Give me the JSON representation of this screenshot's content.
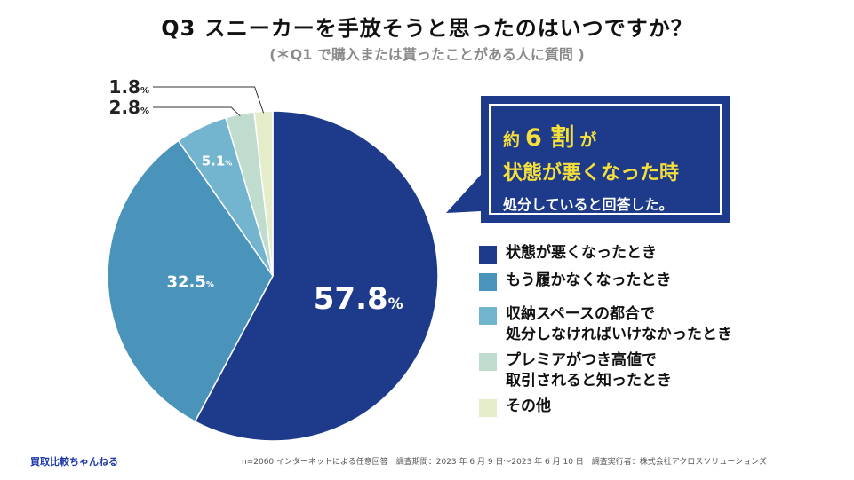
{
  "header": {
    "title": "Q3  スニーカーを手放そうと思ったのはいつですか？",
    "subtitle": "(＊Q1 で購入または貰ったことがある人に質問 )"
  },
  "chart_data": {
    "type": "pie",
    "title": "Q3  スニーカーを手放そうと思ったのはいつですか？",
    "unit": "%",
    "slices": [
      {
        "label": "状態が悪くなったとき",
        "value": 57.8,
        "color": "#1e3a8a"
      },
      {
        "label": "もう履かなくなったとき",
        "value": 32.5,
        "color": "#4a93bb"
      },
      {
        "label": "収納スペースの都合で\n処分しなければいけなかったとき",
        "value": 5.1,
        "color": "#73b4cf"
      },
      {
        "label": "プレミアがつき高値で\n取引されると知ったとき",
        "value": 2.8,
        "color": "#bfdcce"
      },
      {
        "label": "その他",
        "value": 1.8,
        "color": "#e4ecca"
      }
    ],
    "legend_position": "right"
  },
  "callout": {
    "prefix": "約",
    "number": "6 割",
    "suffix": "が",
    "line2": "状態が悪くなった時",
    "line3": "処分していると回答した。"
  },
  "footer": {
    "brand": "買取比較ちゃんねる",
    "note": "n=2060 インターネットによる任意回答　調査期間：2023 年 6 月 9 日〜2023 年 6 月 10 日　調査実行者：株式会社アクロスソリューションズ"
  }
}
